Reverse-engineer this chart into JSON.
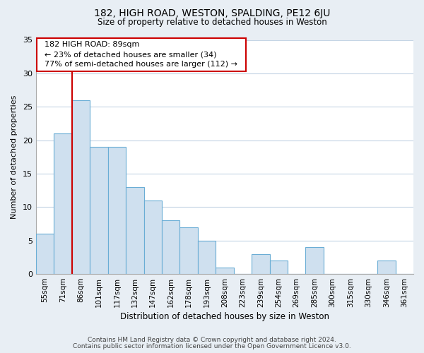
{
  "title": "182, HIGH ROAD, WESTON, SPALDING, PE12 6JU",
  "subtitle": "Size of property relative to detached houses in Weston",
  "xlabel": "Distribution of detached houses by size in Weston",
  "ylabel": "Number of detached properties",
  "bar_labels": [
    "55sqm",
    "71sqm",
    "86sqm",
    "101sqm",
    "117sqm",
    "132sqm",
    "147sqm",
    "162sqm",
    "178sqm",
    "193sqm",
    "208sqm",
    "223sqm",
    "239sqm",
    "254sqm",
    "269sqm",
    "285sqm",
    "300sqm",
    "315sqm",
    "330sqm",
    "346sqm",
    "361sqm"
  ],
  "bar_values": [
    6,
    21,
    26,
    19,
    19,
    13,
    11,
    8,
    7,
    5,
    1,
    0,
    3,
    2,
    0,
    4,
    0,
    0,
    0,
    2,
    0
  ],
  "bar_color": "#cfe0ef",
  "bar_edge_color": "#6aadd5",
  "vline_index": 2,
  "vline_color": "#cc0000",
  "annotation_title": "182 HIGH ROAD: 89sqm",
  "annotation_line1": "← 23% of detached houses are smaller (34)",
  "annotation_line2": "77% of semi-detached houses are larger (112) →",
  "annotation_box_color": "#ffffff",
  "annotation_box_edge": "#cc0000",
  "ylim": [
    0,
    35
  ],
  "yticks": [
    0,
    5,
    10,
    15,
    20,
    25,
    30,
    35
  ],
  "footer1": "Contains HM Land Registry data © Crown copyright and database right 2024.",
  "footer2": "Contains public sector information licensed under the Open Government Licence v3.0.",
  "bg_color": "#e8eef4",
  "plot_bg_color": "#ffffff",
  "grid_color": "#c5d5e5"
}
